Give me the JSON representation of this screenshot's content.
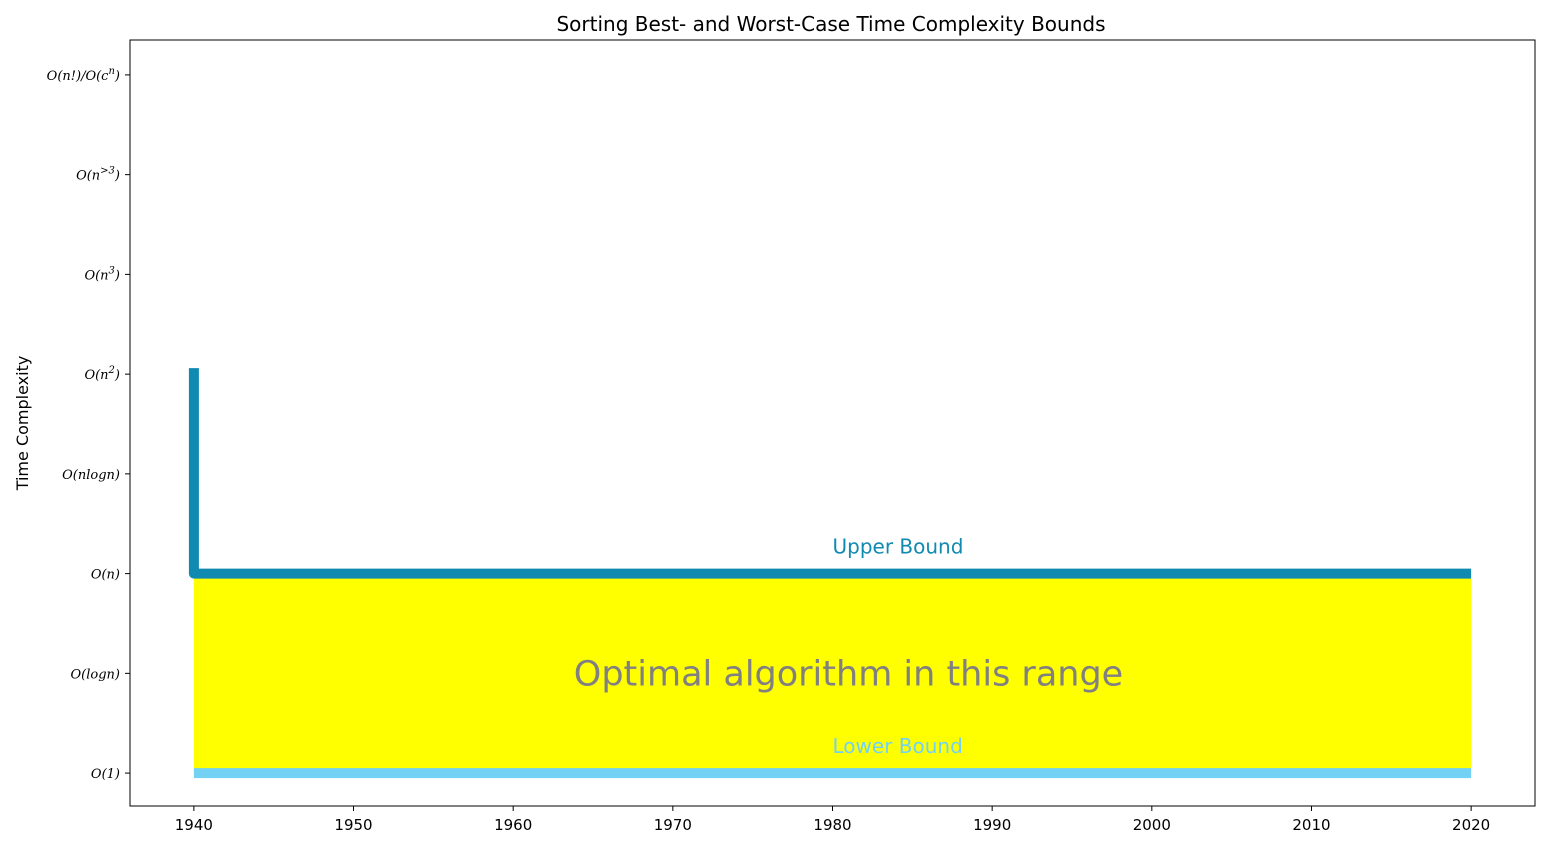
{
  "chart_data": {
    "type": "line",
    "title": "Sorting Best- and Worst-Case Time Complexity Bounds",
    "xlabel": "",
    "ylabel": "Time Complexity",
    "xlim": [
      1936,
      2024
    ],
    "ylim": [
      -0.33,
      7.35
    ],
    "x_ticks": [
      1940,
      1950,
      1960,
      1970,
      1980,
      1990,
      2000,
      2010,
      2020
    ],
    "y_ticks": [
      {
        "value": 0,
        "base": "O(1)"
      },
      {
        "value": 1,
        "base": "O(logn)"
      },
      {
        "value": 2,
        "base": "O(n)"
      },
      {
        "value": 3,
        "base": "O(nlogn)"
      },
      {
        "value": 4,
        "base": "O(n",
        "sup": "2",
        "tail": ")"
      },
      {
        "value": 5,
        "base": "O(n",
        "sup": "3",
        "tail": ")"
      },
      {
        "value": 6,
        "base": "O(n",
        "sup": ">3",
        "tail": ")"
      },
      {
        "value": 7,
        "base": "O(n!)/O(c",
        "sup": "n",
        "tail": ")"
      }
    ],
    "grid": false,
    "series": [
      {
        "name": "Upper Bound",
        "color": "#118ab2",
        "points": [
          [
            1940,
            4.06
          ],
          [
            1940,
            2
          ],
          [
            2020,
            2
          ]
        ]
      },
      {
        "name": "Lower Bound",
        "color": "#73d2f3",
        "points": [
          [
            1940,
            0
          ],
          [
            2020,
            0
          ]
        ]
      }
    ],
    "shaded_region": {
      "x": [
        1940,
        2020
      ],
      "y": [
        0,
        2
      ],
      "color": "#ffff00",
      "label": "Optimal algorithm in this range",
      "label_color": "#808080"
    },
    "annotations": [
      {
        "text": "Upper Bound",
        "x": 1980,
        "y": 2,
        "color": "#118ab2"
      },
      {
        "text": "Lower Bound",
        "x": 1980,
        "y": 0,
        "color": "#73d2f3"
      }
    ]
  }
}
